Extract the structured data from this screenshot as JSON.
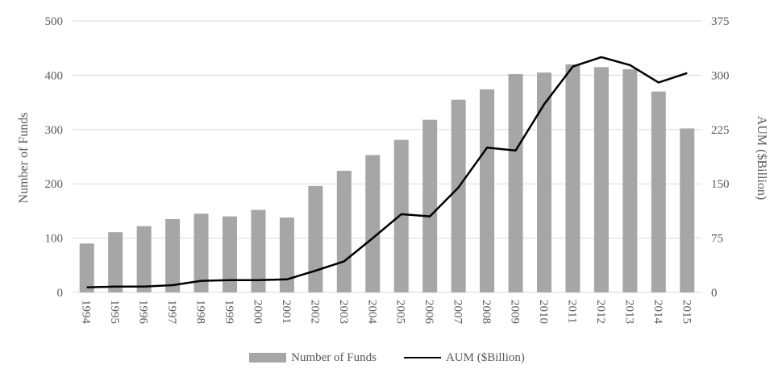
{
  "colors": {
    "bar": "#a6a6a6",
    "line": "#000000",
    "grid": "#d9d9d9",
    "text": "#595959"
  },
  "chart_data": {
    "type": "bar",
    "categories": [
      "1994",
      "1995",
      "1996",
      "1997",
      "1998",
      "1999",
      "2000",
      "2001",
      "2002",
      "2003",
      "2004",
      "2005",
      "2006",
      "2007",
      "2008",
      "2009",
      "2010",
      "2011",
      "2012",
      "2013",
      "2014",
      "2015"
    ],
    "series": [
      {
        "name": "Number of Funds",
        "type": "bar",
        "axis": "left",
        "values": [
          90,
          111,
          122,
          135,
          145,
          140,
          152,
          138,
          196,
          224,
          253,
          281,
          318,
          355,
          374,
          402,
          405,
          420,
          415,
          411,
          370,
          302
        ]
      },
      {
        "name": "AUM ($Billion)",
        "type": "line",
        "axis": "right",
        "values": [
          7,
          8,
          8,
          10,
          16,
          17,
          17,
          18,
          30,
          43,
          75,
          108,
          105,
          145,
          200,
          196,
          260,
          312,
          325,
          314,
          290,
          303
        ]
      }
    ],
    "ylabel_left": "Number of Funds",
    "ylabel_right": "AUM ($Billion)",
    "ylim_left": [
      0,
      500
    ],
    "yticks_left": [
      "0",
      "100",
      "200",
      "300",
      "400",
      "500"
    ],
    "ylim_right": [
      0,
      375
    ],
    "yticks_right": [
      "0",
      "75",
      "150",
      "225",
      "300",
      "375"
    ],
    "grid": true,
    "legend": "bottom"
  },
  "legend": {
    "bar_label": "Number of Funds",
    "line_label": "AUM ($Billion)"
  }
}
